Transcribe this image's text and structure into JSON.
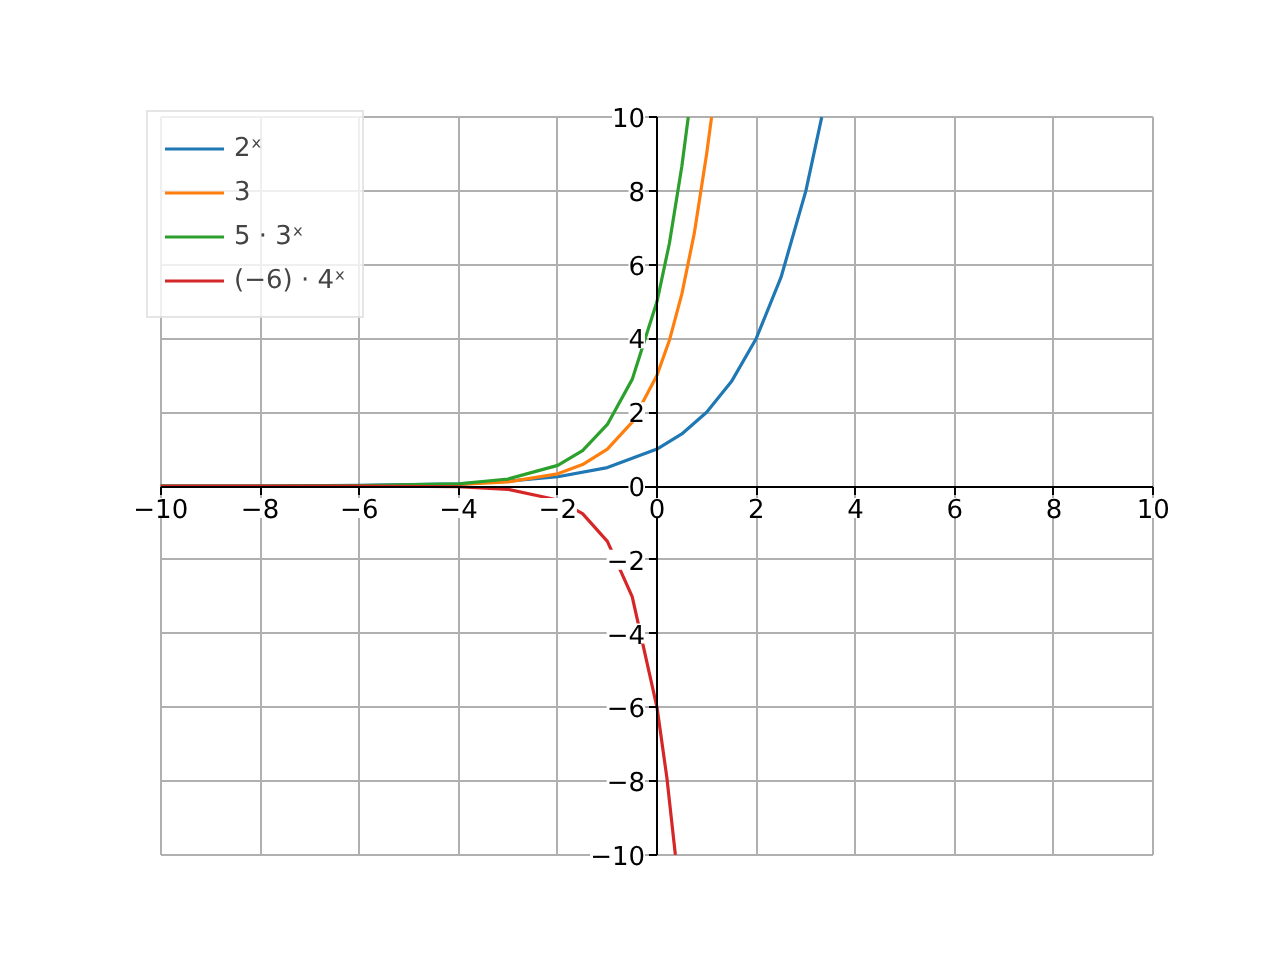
{
  "chart_data": {
    "type": "line",
    "xlim": [
      -10,
      10
    ],
    "ylim": [
      -10,
      10
    ],
    "xticks": [
      -10,
      -8,
      -6,
      -4,
      -2,
      0,
      2,
      4,
      6,
      8,
      10
    ],
    "yticks": [
      -10,
      -8,
      -6,
      -4,
      -2,
      0,
      2,
      4,
      6,
      8,
      10
    ],
    "grid": true,
    "legend": "top left",
    "line_style": "solid",
    "marker": "none",
    "series": [
      {
        "name": "2ˣ",
        "color": "#1f77b4",
        "x": [
          -10,
          -8,
          -6,
          -4,
          -3,
          -2,
          -1,
          0,
          0.5,
          1,
          1.5,
          2,
          2.5,
          3,
          3.32
        ],
        "values": [
          0,
          0,
          0.02,
          0.06,
          0.13,
          0.25,
          0.5,
          1,
          1.41,
          2,
          2.83,
          4,
          5.66,
          8,
          10
        ]
      },
      {
        "name": "3",
        "color": "#ff7f0e",
        "x": [
          -5,
          -4,
          -3,
          -2,
          -1.5,
          -1,
          -0.5,
          0,
          0.25,
          0.5,
          0.75,
          1,
          1.1
        ],
        "values": [
          0.01,
          0.04,
          0.11,
          0.33,
          0.58,
          1,
          1.73,
          3,
          3.95,
          5.2,
          6.84,
          9,
          10
        ]
      },
      {
        "name": "5 · 3ˣ",
        "color": "#2ca02c",
        "x": [
          -10,
          -8,
          -6,
          -4,
          -3,
          -2,
          -1.5,
          -1,
          -0.5,
          0,
          0.25,
          0.5,
          0.63
        ],
        "values": [
          0,
          0,
          0.01,
          0.06,
          0.19,
          0.56,
          0.96,
          1.67,
          2.89,
          5,
          6.58,
          8.66,
          10
        ]
      },
      {
        "name": "(−6) · 4ˣ",
        "color": "#d62728",
        "x": [
          -10,
          -8,
          -6,
          -4,
          -3,
          -2,
          -1.5,
          -1,
          -0.5,
          0,
          0.2,
          0.37
        ],
        "values": [
          0,
          0,
          0,
          -0.02,
          -0.09,
          -0.38,
          -0.75,
          -1.5,
          -3,
          -6,
          -7.92,
          -10
        ]
      }
    ]
  }
}
